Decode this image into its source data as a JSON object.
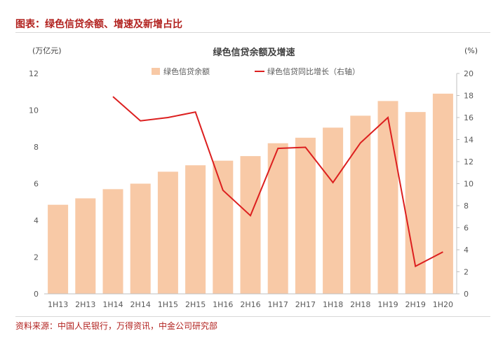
{
  "figure_title": "图表：绿色信贷余额、增速及新增占比",
  "source": "资料来源：中国人民银行，万得资讯，中金公司研究部",
  "colors": {
    "bar": "#f8c9a6",
    "line": "#dc1f1f",
    "title": "#b2221f",
    "text": "#595959"
  },
  "chart_data": {
    "type": "bar",
    "title": "绿色信贷余额及增速",
    "categories": [
      "1H13",
      "2H13",
      "1H14",
      "2H14",
      "1H15",
      "2H15",
      "1H16",
      "2H16",
      "1H17",
      "2H17",
      "1H18",
      "2H18",
      "1H19",
      "2H19",
      "1H20"
    ],
    "left_axis": {
      "label": "(万亿元)",
      "ylim": [
        0,
        12
      ],
      "ticks": [
        "0",
        "2",
        "4",
        "6",
        "8",
        "10",
        "12"
      ]
    },
    "right_axis": {
      "label": "(%)",
      "ylim": [
        0,
        20
      ],
      "ticks": [
        "0",
        "2",
        "4",
        "6",
        "8",
        "10",
        "12",
        "14",
        "16",
        "18",
        "20"
      ]
    },
    "series": [
      {
        "name": "绿色信贷余额",
        "type": "bar",
        "axis": "left",
        "values": [
          4.85,
          5.2,
          5.7,
          6.0,
          6.65,
          7.0,
          7.25,
          7.5,
          8.2,
          8.5,
          9.05,
          9.7,
          10.5,
          9.9,
          10.9
        ]
      },
      {
        "name": "绿色信贷同比增长（右轴）",
        "type": "line",
        "axis": "right",
        "values": [
          null,
          null,
          17.9,
          15.7,
          16.0,
          16.5,
          9.4,
          7.1,
          13.2,
          13.3,
          10.1,
          13.7,
          16.0,
          2.5,
          3.8
        ]
      }
    ],
    "grid": false,
    "legend": "top"
  }
}
